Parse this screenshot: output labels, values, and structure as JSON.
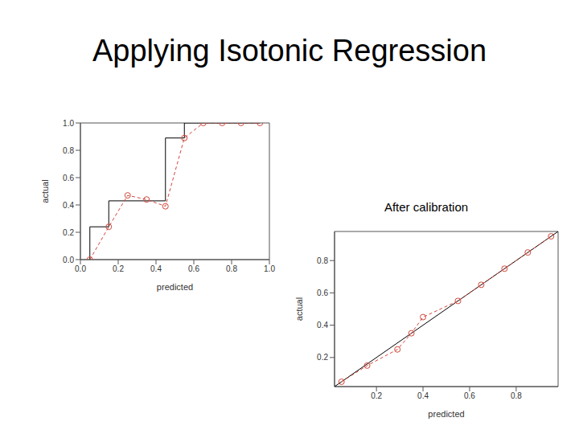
{
  "title": "Applying Isotonic Regression",
  "chart_data": [
    {
      "type": "scatter",
      "x_label": "predicted",
      "y_label": "actual",
      "xlim": [
        0,
        1
      ],
      "ylim": [
        0,
        1
      ],
      "xticks": [
        {
          "value": 0,
          "label": "0.0"
        },
        {
          "value": 0.2,
          "label": "0.2"
        },
        {
          "value": 0.4,
          "label": "0.4"
        },
        {
          "value": 0.6,
          "label": "0.6"
        },
        {
          "value": 0.8,
          "label": "0.8"
        },
        {
          "value": 1,
          "label": "1.0"
        }
      ],
      "yticks": [
        {
          "value": 0,
          "label": "0.0"
        },
        {
          "value": 0.2,
          "label": "0.2"
        },
        {
          "value": 0.4,
          "label": "0.4"
        },
        {
          "value": 0.6,
          "label": "0.6"
        },
        {
          "value": 0.8,
          "label": "0.8"
        },
        {
          "value": 1,
          "label": "1.0"
        }
      ],
      "grid": false,
      "series": [
        {
          "type": "line",
          "color": "#000000",
          "marker": "none",
          "line_style": "solid",
          "x": [
            0.05,
            0.05,
            0.15,
            0.15,
            0.45,
            0.45,
            0.55,
            0.55,
            0.95
          ],
          "values": [
            0,
            0.24,
            0.24,
            0.43,
            0.43,
            0.89,
            0.89,
            1,
            1
          ]
        },
        {
          "type": "line",
          "color": "#d0473c",
          "marker": "circle",
          "line_style": "dashed",
          "x": [
            0.05,
            0.15,
            0.25,
            0.35,
            0.45,
            0.55,
            0.65,
            0.75,
            0.85,
            0.95
          ],
          "values": [
            0,
            0.24,
            0.47,
            0.44,
            0.39,
            0.89,
            1,
            1,
            1,
            1
          ]
        }
      ]
    },
    {
      "type": "scatter",
      "title": "After calibration",
      "x_label": "predicted",
      "y_label": "actual",
      "xlim": [
        0.02,
        0.98
      ],
      "ylim": [
        0.02,
        0.98
      ],
      "xticks": [
        0.2,
        0.4,
        0.6,
        0.8
      ],
      "yticks": [
        0.2,
        0.4,
        0.6,
        0.8
      ],
      "grid": false,
      "series": [
        {
          "type": "line",
          "color": "#000000",
          "marker": "none",
          "line_style": "solid",
          "x": [
            0.02,
            0.98
          ],
          "values": [
            0.02,
            0.98
          ]
        },
        {
          "type": "line",
          "color": "#d0473c",
          "marker": "circle",
          "line_style": "dashed",
          "x": [
            0.05,
            0.16,
            0.29,
            0.35,
            0.4,
            0.55,
            0.65,
            0.75,
            0.85,
            0.95
          ],
          "values": [
            0.05,
            0.15,
            0.25,
            0.35,
            0.45,
            0.55,
            0.65,
            0.75,
            0.85,
            0.95
          ]
        }
      ]
    }
  ]
}
